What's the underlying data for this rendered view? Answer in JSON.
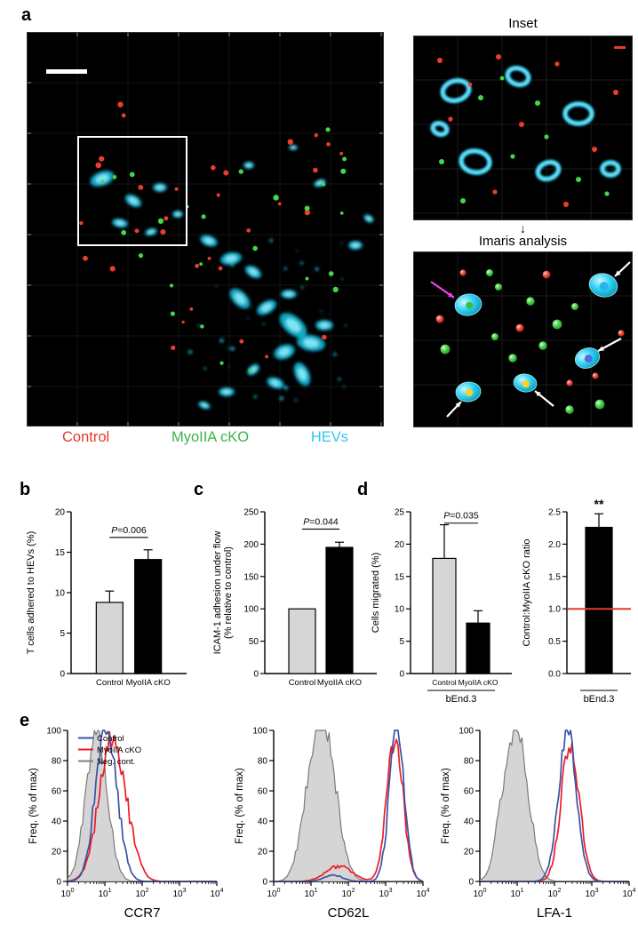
{
  "panels": {
    "a": {
      "label": "a",
      "inset_title": "Inset",
      "imaris_title": "Imaris analysis",
      "arrow": "↓",
      "legend": [
        {
          "label": "Control",
          "color": "#e8392e"
        },
        {
          "label": "MyoIIA cKO",
          "color": "#3bb54a"
        },
        {
          "label": "HEVs",
          "color": "#2ec6f2"
        }
      ]
    },
    "b": {
      "label": "b"
    },
    "c": {
      "label": "c"
    },
    "d": {
      "label": "d"
    },
    "e": {
      "label": "e",
      "legend": [
        {
          "label": "Control",
          "color": "#3a53a4"
        },
        {
          "label": "MyoIIA cKO",
          "color": "#ed1c24"
        },
        {
          "label": "Neg. cont.",
          "color": "#7f7f7f"
        }
      ]
    }
  },
  "chart_data": [
    {
      "id": "b",
      "type": "bar",
      "categories": [
        "Control",
        "MyoIIA cKO"
      ],
      "values": [
        8.8,
        14.1
      ],
      "errors": [
        1.4,
        1.2
      ],
      "bar_colors": [
        "#d6d6d6",
        "#000000"
      ],
      "ylabel": "T cells adhered to HEVs (%)",
      "ylim": [
        0,
        20
      ],
      "yticks": [
        0,
        5,
        10,
        15,
        20
      ],
      "p_value": "P=0.006"
    },
    {
      "id": "c",
      "type": "bar",
      "categories": [
        "Control",
        "MyoIIA cKO"
      ],
      "values": [
        100,
        195
      ],
      "errors": [
        0,
        8
      ],
      "bar_colors": [
        "#d6d6d6",
        "#000000"
      ],
      "ylabel": "ICAM-1 adhesion under flow\n(% relative to control)",
      "ylim": [
        0,
        250
      ],
      "yticks": [
        0,
        50,
        100,
        150,
        200,
        250
      ],
      "p_value": "P=0.044"
    },
    {
      "id": "d1",
      "type": "bar",
      "categories": [
        "Control",
        "MyoIIA cKO"
      ],
      "values": [
        17.8,
        7.8
      ],
      "errors": [
        5.2,
        1.9
      ],
      "bar_colors": [
        "#d6d6d6",
        "#000000"
      ],
      "ylabel": "Cells migrated (%)",
      "xlabel": "bEnd.3",
      "ylim": [
        0,
        25
      ],
      "yticks": [
        0,
        5,
        10,
        15,
        20,
        25
      ],
      "p_value": "P=0.035"
    },
    {
      "id": "d2",
      "type": "bar",
      "categories": [],
      "values": [
        2.26
      ],
      "errors": [
        0.21
      ],
      "bar_colors": [
        "#000000"
      ],
      "ylabel": "Control:MyoIIA cKO ratio",
      "xlabel": "bEnd.3",
      "ylim": [
        0,
        2.5
      ],
      "yticks": [
        0,
        0.5,
        1,
        1.5,
        2,
        2.5
      ],
      "ytick_decimals": 1,
      "annotation": "**",
      "ref_line": {
        "y": 1.0,
        "color": "#e8392e"
      }
    },
    {
      "id": "e_ccr7",
      "type": "histogram",
      "seed": 5,
      "xlabel": "CCR7",
      "ylabel": "Freq. (% of max)",
      "ylim": [
        0,
        100
      ],
      "yticks": [
        0,
        20,
        40,
        60,
        80,
        100
      ],
      "xtick_exponents": [
        0,
        1,
        2,
        3,
        4
      ],
      "show_legend": true,
      "series": [
        {
          "name": "Neg. cont.",
          "color": "#7a7a7a",
          "fill": "#d0d0d0",
          "peaks": [
            {
              "c": 0.78,
              "w": 0.28,
              "h": 100
            }
          ]
        },
        {
          "name": "MyoIIA cKO",
          "color": "#ed1c24",
          "peaks": [
            {
              "c": 1.18,
              "w": 0.34,
              "h": 92
            },
            {
              "c": 1.65,
              "w": 0.28,
              "h": 10
            }
          ]
        },
        {
          "name": "Control",
          "color": "#3a53a4",
          "peaks": [
            {
              "c": 1.02,
              "w": 0.27,
              "h": 100
            },
            {
              "c": 1.38,
              "w": 0.22,
              "h": 9
            }
          ]
        }
      ]
    },
    {
      "id": "e_cd62l",
      "type": "histogram",
      "seed": 9,
      "xlabel": "CD62L",
      "ylabel": "Freq. (% of max)",
      "ylim": [
        0,
        100
      ],
      "yticks": [
        0,
        20,
        40,
        60,
        80,
        100
      ],
      "xtick_exponents": [
        0,
        1,
        2,
        3,
        4
      ],
      "show_legend": false,
      "series": [
        {
          "name": "Neg. cont.",
          "color": "#7a7a7a",
          "fill": "#d0d0d0",
          "peaks": [
            {
              "c": 1.35,
              "w": 0.33,
              "h": 100
            },
            {
              "c": 0.9,
              "w": 0.25,
              "h": 25
            }
          ]
        },
        {
          "name": "MyoIIA cKO",
          "color": "#ed1c24",
          "peaks": [
            {
              "c": 1.75,
              "w": 0.35,
              "h": 10
            },
            {
              "c": 3.25,
              "w": 0.22,
              "h": 94
            }
          ]
        },
        {
          "name": "Control",
          "color": "#3a53a4",
          "peaks": [
            {
              "c": 1.6,
              "w": 0.25,
              "h": 4
            },
            {
              "c": 3.3,
              "w": 0.2,
              "h": 100
            }
          ]
        }
      ]
    },
    {
      "id": "e_lfa1",
      "type": "histogram",
      "seed": 13,
      "xlabel": "LFA-1",
      "ylabel": "Freq. (% of max)",
      "ylim": [
        0,
        100
      ],
      "yticks": [
        0,
        20,
        40,
        60,
        80,
        100
      ],
      "xtick_exponents": [
        0,
        1,
        2,
        3,
        4
      ],
      "show_legend": false,
      "series": [
        {
          "name": "Neg. cont.",
          "color": "#7a7a7a",
          "fill": "#d0d0d0",
          "peaks": [
            {
              "c": 1.0,
              "w": 0.3,
              "h": 100
            },
            {
              "c": 0.55,
              "w": 0.2,
              "h": 20
            }
          ]
        },
        {
          "name": "MyoIIA cKO",
          "color": "#ed1c24",
          "peaks": [
            {
              "c": 2.42,
              "w": 0.24,
              "h": 91
            }
          ]
        },
        {
          "name": "Control",
          "color": "#3a53a4",
          "peaks": [
            {
              "c": 2.35,
              "w": 0.24,
              "h": 100
            }
          ]
        }
      ]
    }
  ]
}
